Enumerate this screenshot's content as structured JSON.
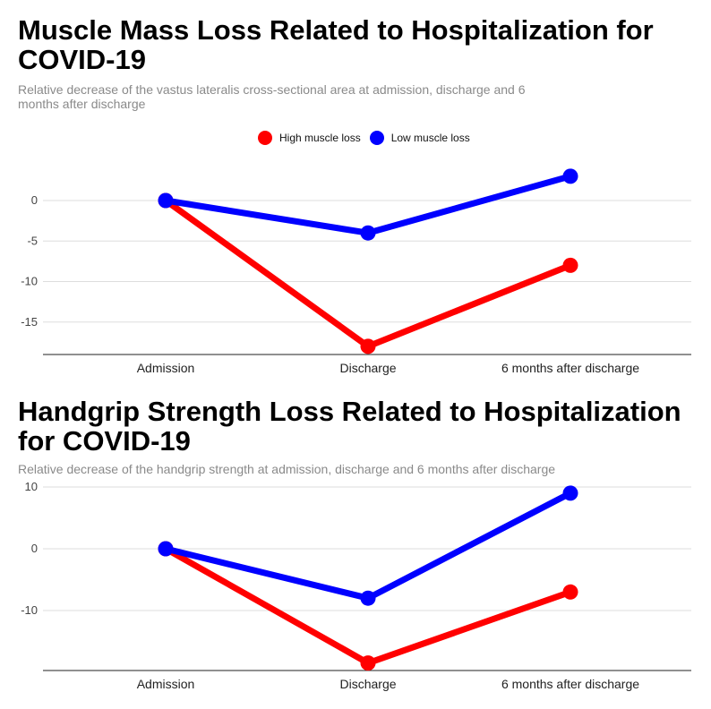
{
  "chart_data": [
    {
      "type": "line",
      "title": "Muscle Mass Loss Related to Hospitalization for COVID-19",
      "subtitle": "Relative decrease of the vastus lateralis cross-sectional area at admission, discharge and 6 months after discharge",
      "categories": [
        "Admission",
        "Discharge",
        "6 months after discharge"
      ],
      "series": [
        {
          "name": "High muscle loss",
          "color": "#ff0000",
          "values": [
            0,
            -18,
            -8
          ]
        },
        {
          "name": "Low muscle loss",
          "color": "#0000ff",
          "values": [
            0,
            -4,
            3
          ]
        }
      ],
      "yticks": [
        0,
        -5,
        -10,
        -15
      ],
      "ylim": [
        -19,
        5
      ],
      "grid": true,
      "legend": "top-center"
    },
    {
      "type": "line",
      "title": "Handgrip Strength Loss Related to Hospitalization for COVID-19",
      "subtitle": "Relative decrease of the handgrip strength at admission, discharge and 6 months after discharge",
      "categories": [
        "Admission",
        "Discharge",
        "6 months after discharge"
      ],
      "series": [
        {
          "name": "High muscle loss",
          "color": "#ff0000",
          "values": [
            0,
            -18.5,
            -7
          ]
        },
        {
          "name": "Low muscle loss",
          "color": "#0000ff",
          "values": [
            0,
            -8,
            9
          ]
        }
      ],
      "yticks": [
        10,
        0,
        -10
      ],
      "ylim": [
        -20,
        10
      ],
      "grid": true,
      "legend": "none"
    }
  ]
}
